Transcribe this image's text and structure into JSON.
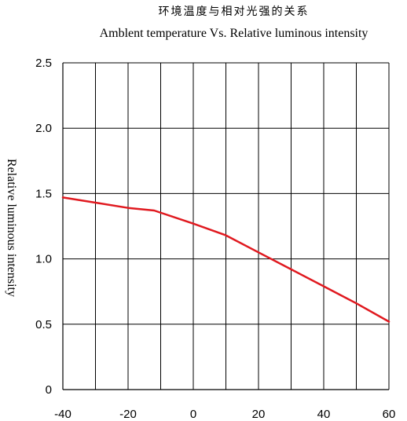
{
  "chart_data": {
    "type": "line",
    "title": "环境温度与相对光强的关系",
    "subtitle": "Amblent temperature  Vs.  Relative luminous intensity",
    "xlabel": "",
    "ylabel": "Relative luminous intensity",
    "xlim": [
      -40,
      60
    ],
    "ylim": [
      0,
      2.5
    ],
    "x_ticks": [
      -40,
      -20,
      0,
      20,
      40,
      60
    ],
    "x_tick_labels": [
      "-40",
      "-20",
      "0",
      "20",
      "40",
      "60"
    ],
    "y_ticks": [
      0,
      0.5,
      1.0,
      1.5,
      2.0,
      2.5
    ],
    "y_tick_labels": [
      "0",
      "0.5",
      "1.0",
      "1.5",
      "2.0",
      "2.5"
    ],
    "x_grid_values": [
      -30,
      -20,
      -10,
      0,
      10,
      20,
      30,
      40,
      50,
      60
    ],
    "grid": true,
    "series": [
      {
        "color": "#e0191f",
        "x": [
          -40,
          -30,
          -20,
          -12,
          0,
          10,
          20,
          30,
          40,
          50,
          60
        ],
        "y": [
          1.47,
          1.43,
          1.39,
          1.37,
          1.27,
          1.18,
          1.05,
          0.92,
          0.79,
          0.66,
          0.52
        ]
      }
    ]
  }
}
